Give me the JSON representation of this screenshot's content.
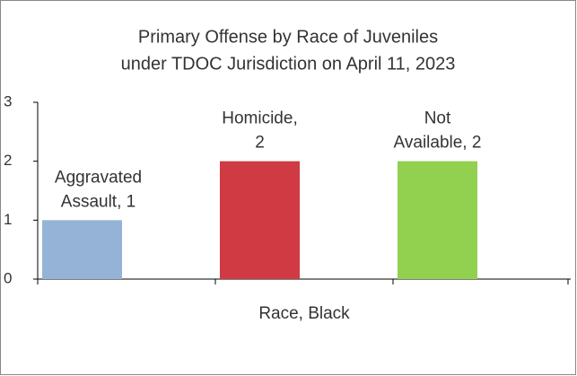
{
  "chart_data": {
    "type": "bar",
    "title_lines": [
      "Primary Offense by Race of Juveniles",
      "under TDOC Jurisdiction on April 11, 2023"
    ],
    "categories": [
      "Race, Black"
    ],
    "series": [
      {
        "name": "Aggravated Assault",
        "color": "#95b3d7",
        "values": [
          1
        ],
        "value_labels": [
          "Aggravated Assault, 1"
        ]
      },
      {
        "name": "Homicide",
        "color": "#cf3a43",
        "values": [
          2
        ],
        "value_labels": [
          "Homicide, 2"
        ]
      },
      {
        "name": "Not Available",
        "color": "#92d050",
        "values": [
          2
        ],
        "value_labels": [
          "Not Available, 2"
        ]
      }
    ],
    "ylim": [
      0,
      3
    ],
    "yticks": [
      0,
      1,
      2,
      3
    ],
    "grid": false,
    "legend": false
  }
}
